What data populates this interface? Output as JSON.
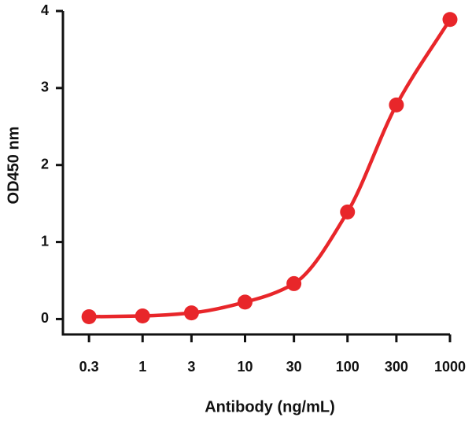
{
  "chart_data": {
    "type": "line",
    "x_label": "Antibody (ng/mL)",
    "y_label": "OD450 nm",
    "x": [
      0.3,
      1,
      3,
      10,
      30,
      100,
      300,
      1000
    ],
    "values": [
      0.03,
      0.04,
      0.08,
      0.22,
      0.46,
      1.39,
      2.78,
      3.89
    ],
    "color": "#e8262a",
    "x_scale": "log",
    "xlim": [
      0.167,
      1000
    ],
    "ylim": [
      -0.2,
      4
    ],
    "xticks": [
      0.3,
      1,
      3,
      10,
      30,
      100,
      300,
      1000
    ],
    "yticks": [
      0,
      1,
      2,
      3,
      4
    ],
    "smooth": true
  }
}
